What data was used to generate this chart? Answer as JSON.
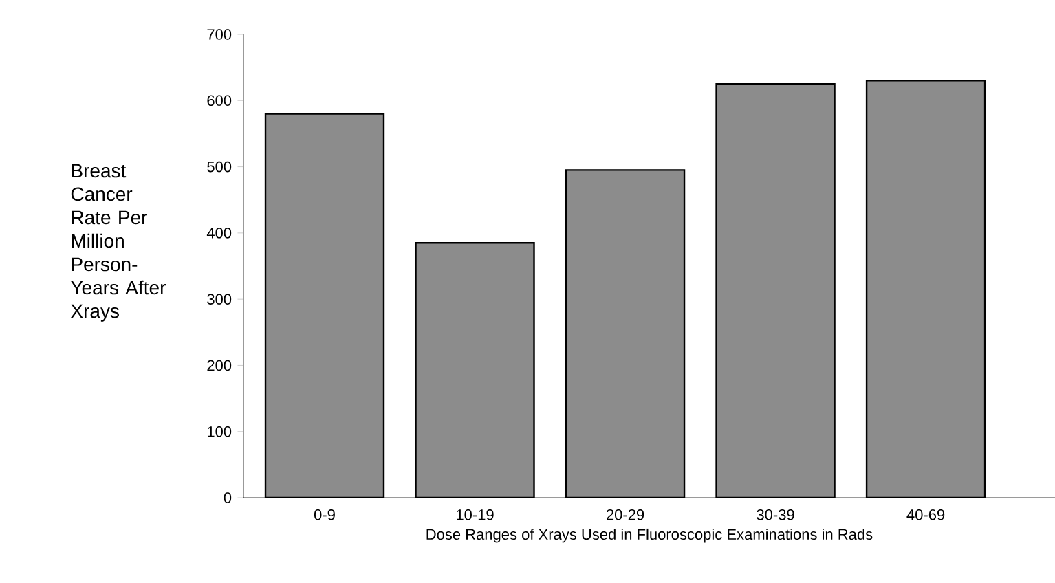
{
  "chart_data": {
    "type": "bar",
    "xlabel": "Dose Ranges of Xrays Used in Fluoroscopic Examinations in Rads",
    "ylabel": "Breast Cancer Rate Per Million Person-Years After Xrays",
    "categories": [
      "0-9",
      "10-19",
      "20-29",
      "30-39",
      "40-69"
    ],
    "values": [
      580,
      385,
      495,
      625,
      630
    ],
    "color": "#8c8c8c",
    "ylim": [
      0,
      700
    ],
    "yticks": [
      0,
      100,
      200,
      300,
      400,
      500,
      600,
      700
    ]
  }
}
